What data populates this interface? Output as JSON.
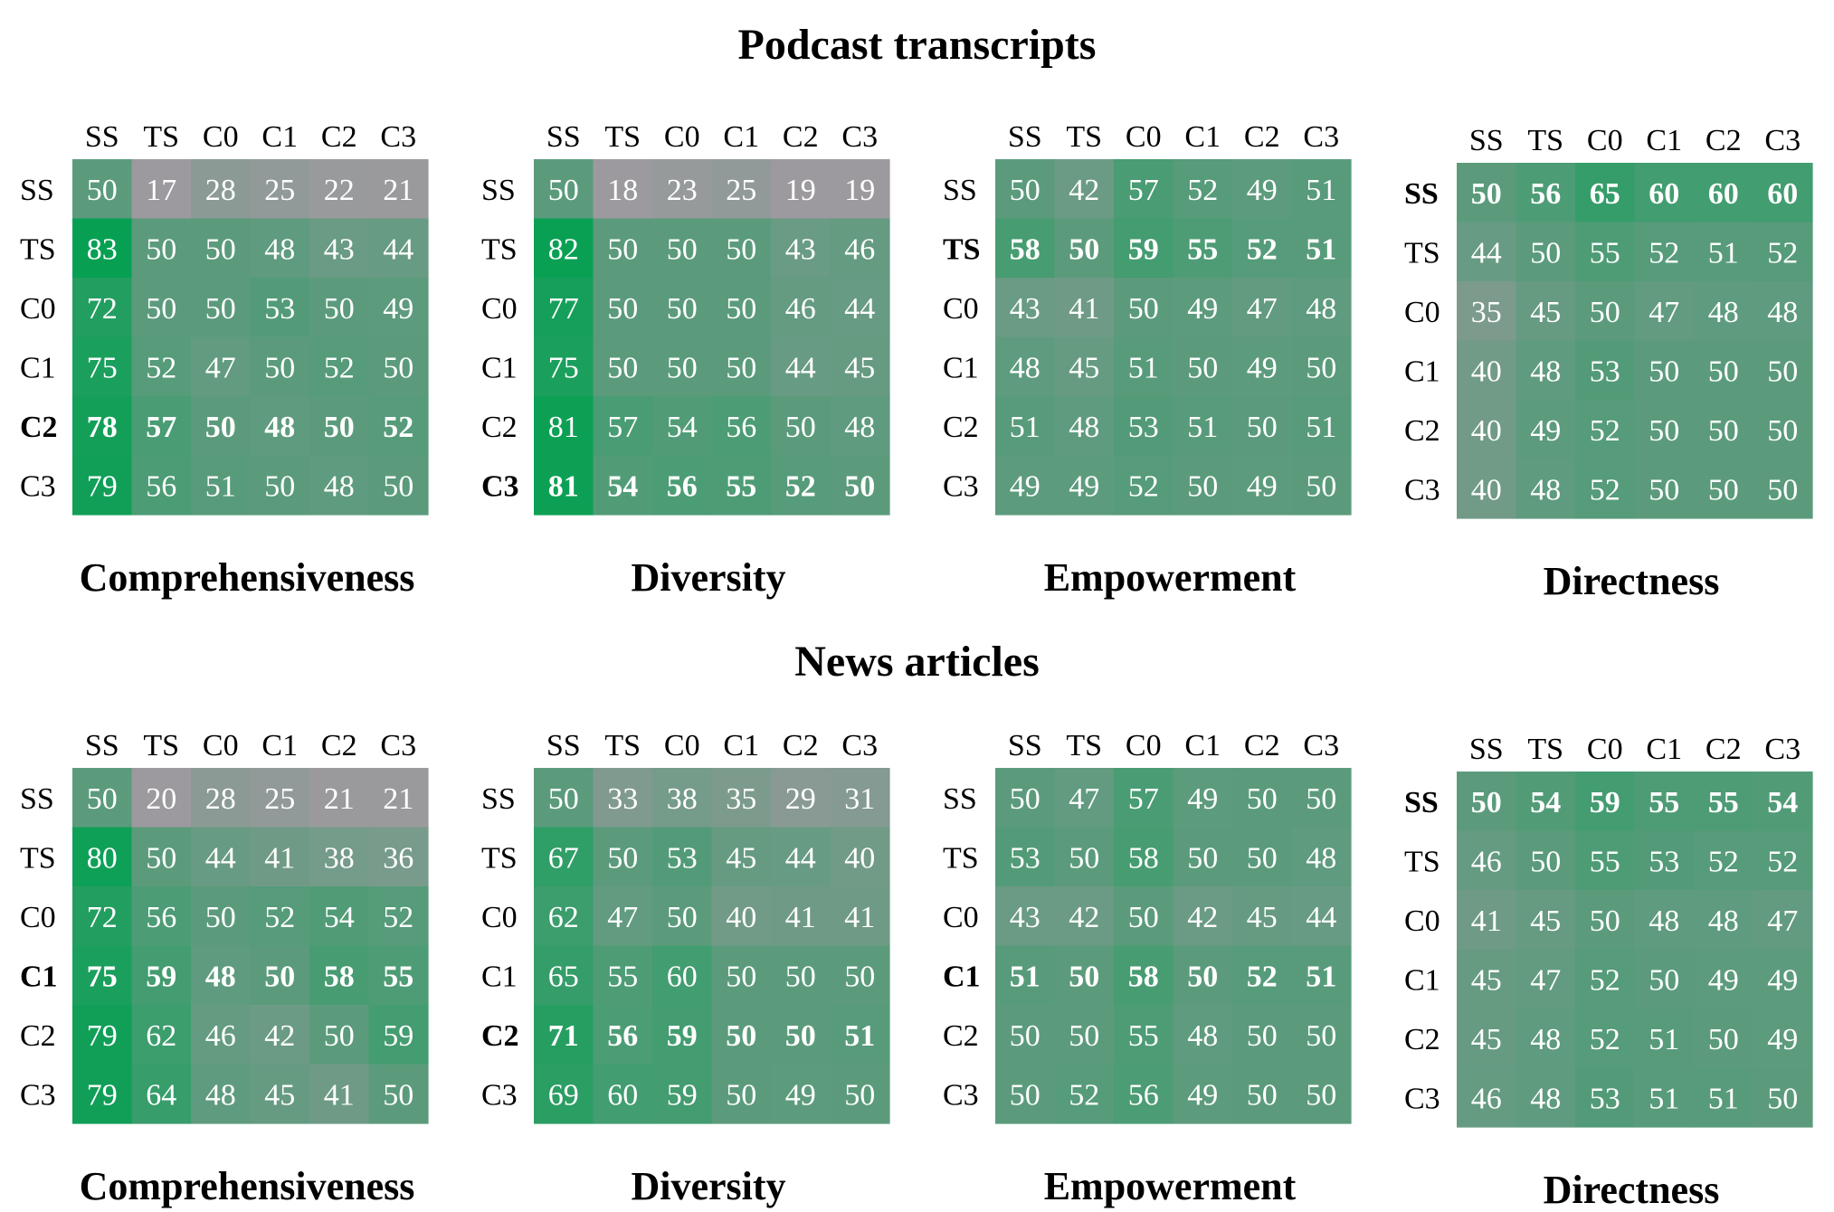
{
  "sections": [
    {
      "title": "Podcast transcripts"
    },
    {
      "title": "News articles"
    }
  ],
  "colors": {
    "low": "#9c9a9e",
    "mid": "#5b9b7c",
    "high": "#07a053",
    "cell_text": "#ffffff",
    "axis_text": "#000000"
  },
  "chart_data": [
    {
      "type": "heatmap",
      "section": "Podcast transcripts",
      "title": "Comprehensiveness",
      "x_labels": [
        "SS",
        "TS",
        "C0",
        "C1",
        "C2",
        "C3"
      ],
      "y_labels": [
        "SS",
        "TS",
        "C0",
        "C1",
        "C2",
        "C3"
      ],
      "bold_row": "C2",
      "values": [
        [
          50,
          17,
          28,
          25,
          22,
          21
        ],
        [
          83,
          50,
          50,
          48,
          43,
          44
        ],
        [
          72,
          50,
          50,
          53,
          50,
          49
        ],
        [
          75,
          52,
          47,
          50,
          52,
          50
        ],
        [
          78,
          57,
          50,
          48,
          50,
          52
        ],
        [
          79,
          56,
          51,
          50,
          48,
          50
        ]
      ]
    },
    {
      "type": "heatmap",
      "section": "Podcast transcripts",
      "title": "Diversity",
      "x_labels": [
        "SS",
        "TS",
        "C0",
        "C1",
        "C2",
        "C3"
      ],
      "y_labels": [
        "SS",
        "TS",
        "C0",
        "C1",
        "C2",
        "C3"
      ],
      "bold_row": "C3",
      "values": [
        [
          50,
          18,
          23,
          25,
          19,
          19
        ],
        [
          82,
          50,
          50,
          50,
          43,
          46
        ],
        [
          77,
          50,
          50,
          50,
          46,
          44
        ],
        [
          75,
          50,
          50,
          50,
          44,
          45
        ],
        [
          81,
          57,
          54,
          56,
          50,
          48
        ],
        [
          81,
          54,
          56,
          55,
          52,
          50
        ]
      ]
    },
    {
      "type": "heatmap",
      "section": "Podcast transcripts",
      "title": "Empowerment",
      "x_labels": [
        "SS",
        "TS",
        "C0",
        "C1",
        "C2",
        "C3"
      ],
      "y_labels": [
        "SS",
        "TS",
        "C0",
        "C1",
        "C2",
        "C3"
      ],
      "bold_row": "TS",
      "values": [
        [
          50,
          42,
          57,
          52,
          49,
          51
        ],
        [
          58,
          50,
          59,
          55,
          52,
          51
        ],
        [
          43,
          41,
          50,
          49,
          47,
          48
        ],
        [
          48,
          45,
          51,
          50,
          49,
          50
        ],
        [
          51,
          48,
          53,
          51,
          50,
          51
        ],
        [
          49,
          49,
          52,
          50,
          49,
          50
        ]
      ]
    },
    {
      "type": "heatmap",
      "section": "Podcast transcripts",
      "title": "Directness",
      "x_labels": [
        "SS",
        "TS",
        "C0",
        "C1",
        "C2",
        "C3"
      ],
      "y_labels": [
        "SS",
        "TS",
        "C0",
        "C1",
        "C2",
        "C3"
      ],
      "bold_row": "SS",
      "values": [
        [
          50,
          56,
          65,
          60,
          60,
          60
        ],
        [
          44,
          50,
          55,
          52,
          51,
          52
        ],
        [
          35,
          45,
          50,
          47,
          48,
          48
        ],
        [
          40,
          48,
          53,
          50,
          50,
          50
        ],
        [
          40,
          49,
          52,
          50,
          50,
          50
        ],
        [
          40,
          48,
          52,
          50,
          50,
          50
        ]
      ]
    },
    {
      "type": "heatmap",
      "section": "News articles",
      "title": "Comprehensiveness",
      "x_labels": [
        "SS",
        "TS",
        "C0",
        "C1",
        "C2",
        "C3"
      ],
      "y_labels": [
        "SS",
        "TS",
        "C0",
        "C1",
        "C2",
        "C3"
      ],
      "bold_row": "C1",
      "values": [
        [
          50,
          20,
          28,
          25,
          21,
          21
        ],
        [
          80,
          50,
          44,
          41,
          38,
          36
        ],
        [
          72,
          56,
          50,
          52,
          54,
          52
        ],
        [
          75,
          59,
          48,
          50,
          58,
          55
        ],
        [
          79,
          62,
          46,
          42,
          50,
          59
        ],
        [
          79,
          64,
          48,
          45,
          41,
          50
        ]
      ]
    },
    {
      "type": "heatmap",
      "section": "News articles",
      "title": "Diversity",
      "x_labels": [
        "SS",
        "TS",
        "C0",
        "C1",
        "C2",
        "C3"
      ],
      "y_labels": [
        "SS",
        "TS",
        "C0",
        "C1",
        "C2",
        "C3"
      ],
      "bold_row": "C2",
      "values": [
        [
          50,
          33,
          38,
          35,
          29,
          31
        ],
        [
          67,
          50,
          53,
          45,
          44,
          40
        ],
        [
          62,
          47,
          50,
          40,
          41,
          41
        ],
        [
          65,
          55,
          60,
          50,
          50,
          50
        ],
        [
          71,
          56,
          59,
          50,
          50,
          51
        ],
        [
          69,
          60,
          59,
          50,
          49,
          50
        ]
      ]
    },
    {
      "type": "heatmap",
      "section": "News articles",
      "title": "Empowerment",
      "x_labels": [
        "SS",
        "TS",
        "C0",
        "C1",
        "C2",
        "C3"
      ],
      "y_labels": [
        "SS",
        "TS",
        "C0",
        "C1",
        "C2",
        "C3"
      ],
      "bold_row": "C1",
      "values": [
        [
          50,
          47,
          57,
          49,
          50,
          50
        ],
        [
          53,
          50,
          58,
          50,
          50,
          48
        ],
        [
          43,
          42,
          50,
          42,
          45,
          44
        ],
        [
          51,
          50,
          58,
          50,
          52,
          51
        ],
        [
          50,
          50,
          55,
          48,
          50,
          50
        ],
        [
          50,
          52,
          56,
          49,
          50,
          50
        ]
      ]
    },
    {
      "type": "heatmap",
      "section": "News articles",
      "title": "Directness",
      "x_labels": [
        "SS",
        "TS",
        "C0",
        "C1",
        "C2",
        "C3"
      ],
      "y_labels": [
        "SS",
        "TS",
        "C0",
        "C1",
        "C2",
        "C3"
      ],
      "bold_row": "SS",
      "values": [
        [
          50,
          54,
          59,
          55,
          55,
          54
        ],
        [
          46,
          50,
          55,
          53,
          52,
          52
        ],
        [
          41,
          45,
          50,
          48,
          48,
          47
        ],
        [
          45,
          47,
          52,
          50,
          49,
          49
        ],
        [
          45,
          48,
          52,
          51,
          50,
          49
        ],
        [
          46,
          48,
          53,
          51,
          51,
          50
        ]
      ]
    }
  ]
}
